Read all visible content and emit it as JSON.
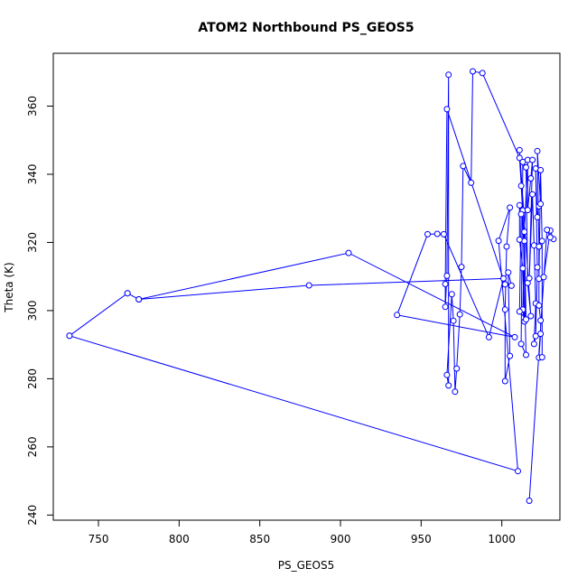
{
  "chart_data": {
    "type": "scatter",
    "title": "ATOM2 Northbound PS_GEOS5",
    "xlabel": "PS_GEOS5",
    "ylabel": "Theta (K)",
    "xlim": [
      722,
      1036
    ],
    "ylim": [
      238.5,
      375.5
    ],
    "xticks": [
      750,
      800,
      850,
      900,
      950,
      1000
    ],
    "yticks": [
      240,
      260,
      280,
      300,
      320,
      340,
      360
    ],
    "grid": false,
    "legend": "none",
    "series_color": "#0000ff",
    "series": [
      {
        "style": "line+points",
        "points": [
          [
            732,
            292.6
          ],
          [
            768,
            305.1
          ],
          [
            775,
            303.3
          ],
          [
            880.5,
            307.4
          ],
          [
            1001,
            309.4
          ],
          [
            992,
            292.2
          ],
          [
            964,
            322.4
          ],
          [
            960,
            322.5
          ],
          [
            954,
            322.4
          ],
          [
            935,
            298.7
          ],
          [
            1008,
            292.2
          ],
          [
            905,
            316.9
          ],
          [
            775,
            303.3
          ],
          [
            768,
            305.1
          ],
          [
            732,
            292.6
          ],
          [
            1010,
            252.9
          ],
          [
            998,
            320.5
          ],
          [
            1005,
            330.2
          ],
          [
            1003,
            318.8
          ],
          [
            1002,
            300.3
          ],
          [
            1002,
            279.3
          ],
          [
            1005,
            286.7
          ],
          [
            1004,
            311.2
          ],
          [
            1006,
            307.3
          ],
          [
            1002,
            307.7
          ],
          [
            966,
            359.1
          ],
          [
            965,
            307.8
          ],
          [
            965,
            301.1
          ],
          [
            966,
            310.2
          ],
          [
            967,
            369.2
          ],
          [
            967,
            278.0
          ],
          [
            966,
            281.1
          ],
          [
            969,
            304.8
          ],
          [
            970,
            297.0
          ],
          [
            971,
            276.2
          ],
          [
            972,
            283.0
          ],
          [
            974,
            298.9
          ],
          [
            975,
            312.8
          ],
          [
            976,
            342.4
          ],
          [
            981,
            337.5
          ],
          [
            982,
            370.2
          ],
          [
            988,
            369.7
          ],
          [
            1011,
            344.8
          ],
          [
            1013,
            329.4
          ],
          [
            1015,
            287.0
          ],
          [
            1012,
            290.2
          ],
          [
            1013,
            343.6
          ],
          [
            1015,
            342.0
          ],
          [
            1016,
            308.1
          ],
          [
            1018,
            298.4
          ],
          [
            1011,
            347.1
          ],
          [
            1012,
            336.6
          ],
          [
            1014,
            320.4
          ],
          [
            1013,
            300.3
          ],
          [
            1014,
            296.8
          ],
          [
            1013,
            312.4
          ],
          [
            1011,
            320.8
          ],
          [
            1011,
            330.9
          ],
          [
            1012,
            328.3
          ],
          [
            1011,
            299.7
          ],
          [
            1015,
            297.4
          ],
          [
            1014,
            323.1
          ],
          [
            1016,
            344.2
          ],
          [
            1016,
            329.5
          ],
          [
            1018,
            338.8
          ],
          [
            1019,
            344.2
          ],
          [
            1017,
            309.5
          ],
          [
            1019,
            334.1
          ],
          [
            1020,
            319.1
          ],
          [
            1021,
            302.1
          ],
          [
            1020,
            290.2
          ],
          [
            1021,
            292.5
          ],
          [
            1022,
            312.7
          ],
          [
            1021,
            341.7
          ],
          [
            1022,
            327.4
          ],
          [
            1023,
            330.6
          ],
          [
            1024,
            331.3
          ],
          [
            1022,
            346.8
          ],
          [
            1023,
            318.8
          ],
          [
            1023,
            301.5
          ],
          [
            1024,
            297.1
          ],
          [
            1024,
            293.2
          ],
          [
            1023,
            286.2
          ],
          [
            1025,
            286.3
          ],
          [
            1025,
            320.4
          ],
          [
            1024,
            341.2
          ],
          [
            1023,
            309.3
          ],
          [
            1026,
            309.8
          ],
          [
            1030,
            323.5
          ],
          [
            1032,
            321.0
          ],
          [
            1030,
            321.5
          ],
          [
            1028,
            323.7
          ],
          [
            1017,
            244.2
          ]
        ]
      }
    ]
  }
}
